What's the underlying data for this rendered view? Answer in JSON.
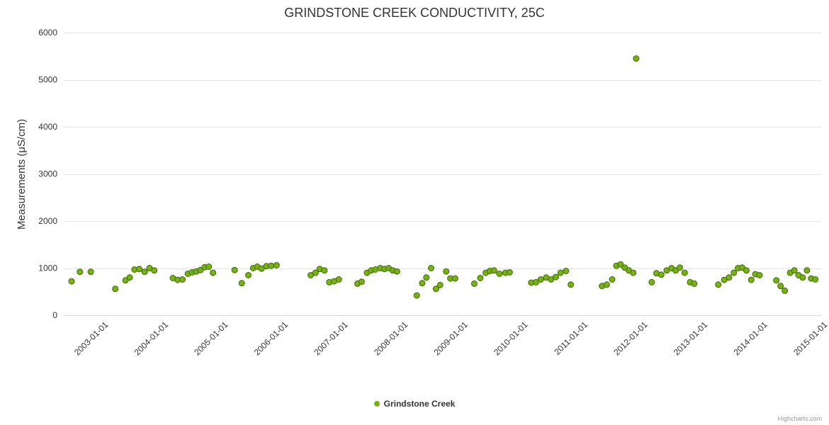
{
  "chart_data": {
    "type": "scatter",
    "title": "GRINDSTONE CREEK CONDUCTIVITY, 25C",
    "xlabel": "",
    "ylabel": "Measurements (μS/cm)",
    "ylim": [
      0,
      6000
    ],
    "xlim": [
      2002.3,
      2014.95
    ],
    "grid": true,
    "legend_position": "bottom",
    "y_ticks": [
      0,
      1000,
      2000,
      3000,
      4000,
      5000,
      6000
    ],
    "x_ticks": [
      {
        "label": "2003-01-01",
        "year": 2003
      },
      {
        "label": "2004-01-01",
        "year": 2004
      },
      {
        "label": "2005-01-01",
        "year": 2005
      },
      {
        "label": "2006-01-01",
        "year": 2006
      },
      {
        "label": "2007-01-01",
        "year": 2007
      },
      {
        "label": "2008-01-01",
        "year": 2008
      },
      {
        "label": "2009-01-01",
        "year": 2009
      },
      {
        "label": "2010-01-01",
        "year": 2010
      },
      {
        "label": "2011-01-01",
        "year": 2011
      },
      {
        "label": "2012-01-01",
        "year": 2012
      },
      {
        "label": "2013-01-01",
        "year": 2013
      },
      {
        "label": "2014-01-01",
        "year": 2014
      },
      {
        "label": "2015-01-01",
        "year": 2015
      }
    ],
    "colors": {
      "gridline": "#e6e6e6",
      "axis_line": "#ccd6eb",
      "tick_label": "#333333"
    },
    "series": [
      {
        "name": "Grindstone Creek",
        "color": "#77b117",
        "border_color": "#3f6b04",
        "points": [
          [
            2002.43,
            720
          ],
          [
            2002.57,
            920
          ],
          [
            2002.75,
            920
          ],
          [
            2003.16,
            560
          ],
          [
            2003.33,
            740
          ],
          [
            2003.4,
            800
          ],
          [
            2003.48,
            970
          ],
          [
            2003.56,
            980
          ],
          [
            2003.65,
            920
          ],
          [
            2003.73,
            1000
          ],
          [
            2003.81,
            950
          ],
          [
            2004.12,
            790
          ],
          [
            2004.2,
            750
          ],
          [
            2004.28,
            760
          ],
          [
            2004.37,
            880
          ],
          [
            2004.44,
            910
          ],
          [
            2004.51,
            930
          ],
          [
            2004.58,
            960
          ],
          [
            2004.65,
            1020
          ],
          [
            2004.72,
            1030
          ],
          [
            2004.79,
            900
          ],
          [
            2005.15,
            960
          ],
          [
            2005.27,
            680
          ],
          [
            2005.38,
            850
          ],
          [
            2005.46,
            1000
          ],
          [
            2005.53,
            1030
          ],
          [
            2005.6,
            990
          ],
          [
            2005.68,
            1040
          ],
          [
            2005.76,
            1050
          ],
          [
            2005.85,
            1060
          ],
          [
            2006.42,
            850
          ],
          [
            2006.5,
            900
          ],
          [
            2006.57,
            980
          ],
          [
            2006.65,
            950
          ],
          [
            2006.73,
            700
          ],
          [
            2006.81,
            720
          ],
          [
            2006.89,
            760
          ],
          [
            2007.2,
            670
          ],
          [
            2007.27,
            710
          ],
          [
            2007.36,
            900
          ],
          [
            2007.43,
            950
          ],
          [
            2007.5,
            970
          ],
          [
            2007.58,
            1000
          ],
          [
            2007.65,
            980
          ],
          [
            2007.72,
            1000
          ],
          [
            2007.79,
            950
          ],
          [
            2007.86,
            930
          ],
          [
            2008.19,
            420
          ],
          [
            2008.28,
            680
          ],
          [
            2008.35,
            800
          ],
          [
            2008.43,
            1000
          ],
          [
            2008.51,
            560
          ],
          [
            2008.58,
            640
          ],
          [
            2008.68,
            930
          ],
          [
            2008.75,
            780
          ],
          [
            2008.83,
            780
          ],
          [
            2009.15,
            670
          ],
          [
            2009.25,
            790
          ],
          [
            2009.34,
            900
          ],
          [
            2009.41,
            940
          ],
          [
            2009.48,
            950
          ],
          [
            2009.57,
            880
          ],
          [
            2009.67,
            900
          ],
          [
            2009.74,
            910
          ],
          [
            2010.1,
            690
          ],
          [
            2010.18,
            700
          ],
          [
            2010.26,
            760
          ],
          [
            2010.35,
            800
          ],
          [
            2010.43,
            760
          ],
          [
            2010.51,
            810
          ],
          [
            2010.59,
            900
          ],
          [
            2010.68,
            940
          ],
          [
            2010.76,
            650
          ],
          [
            2011.28,
            620
          ],
          [
            2011.36,
            650
          ],
          [
            2011.45,
            760
          ],
          [
            2011.52,
            1050
          ],
          [
            2011.59,
            1080
          ],
          [
            2011.66,
            1010
          ],
          [
            2011.73,
            950
          ],
          [
            2011.8,
            900
          ],
          [
            2011.85,
            5450
          ],
          [
            2012.11,
            700
          ],
          [
            2012.19,
            890
          ],
          [
            2012.27,
            860
          ],
          [
            2012.36,
            950
          ],
          [
            2012.44,
            1000
          ],
          [
            2012.51,
            950
          ],
          [
            2012.58,
            1010
          ],
          [
            2012.66,
            900
          ],
          [
            2012.75,
            700
          ],
          [
            2012.82,
            670
          ],
          [
            2013.22,
            650
          ],
          [
            2013.32,
            750
          ],
          [
            2013.4,
            800
          ],
          [
            2013.48,
            900
          ],
          [
            2013.55,
            1000
          ],
          [
            2013.62,
            1010
          ],
          [
            2013.69,
            950
          ],
          [
            2013.77,
            750
          ],
          [
            2013.84,
            870
          ],
          [
            2013.91,
            850
          ],
          [
            2014.19,
            740
          ],
          [
            2014.26,
            620
          ],
          [
            2014.33,
            520
          ],
          [
            2014.42,
            900
          ],
          [
            2014.49,
            950
          ],
          [
            2014.56,
            850
          ],
          [
            2014.63,
            800
          ],
          [
            2014.7,
            950
          ],
          [
            2014.77,
            780
          ],
          [
            2014.84,
            760
          ]
        ]
      }
    ]
  },
  "credits": {
    "label": "Highcharts.com"
  }
}
